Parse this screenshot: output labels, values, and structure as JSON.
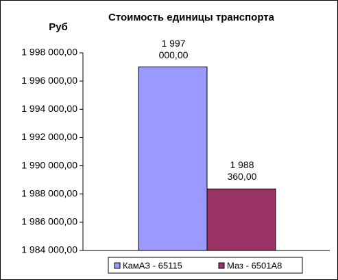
{
  "chart_data": {
    "type": "bar",
    "title": "Стоимость единицы транспорта",
    "y_label": "Руб",
    "series": [
      {
        "name": "КамАЗ - 65115",
        "color": "#9999ff",
        "values": [
          1997000
        ],
        "value_labels": [
          "1 997 000,00"
        ]
      },
      {
        "name": "Маз - 6501А8",
        "color": "#993366",
        "values": [
          1988360
        ],
        "value_labels": [
          "1 988 360,00"
        ]
      }
    ],
    "ylim": [
      1984000,
      1998000
    ],
    "yticks": [
      {
        "value": 1984000,
        "label": "1 984 000,00"
      },
      {
        "value": 1986000,
        "label": "1 986 000,00"
      },
      {
        "value": 1988000,
        "label": "1 988 000,00"
      },
      {
        "value": 1990000,
        "label": "1 990 000,00"
      },
      {
        "value": 1992000,
        "label": "1 992 000,00"
      },
      {
        "value": 1994000,
        "label": "1 994 000,00"
      },
      {
        "value": 1996000,
        "label": "1 996 000,00"
      },
      {
        "value": 1998000,
        "label": "1 998 000,00"
      }
    ],
    "grid": false
  }
}
